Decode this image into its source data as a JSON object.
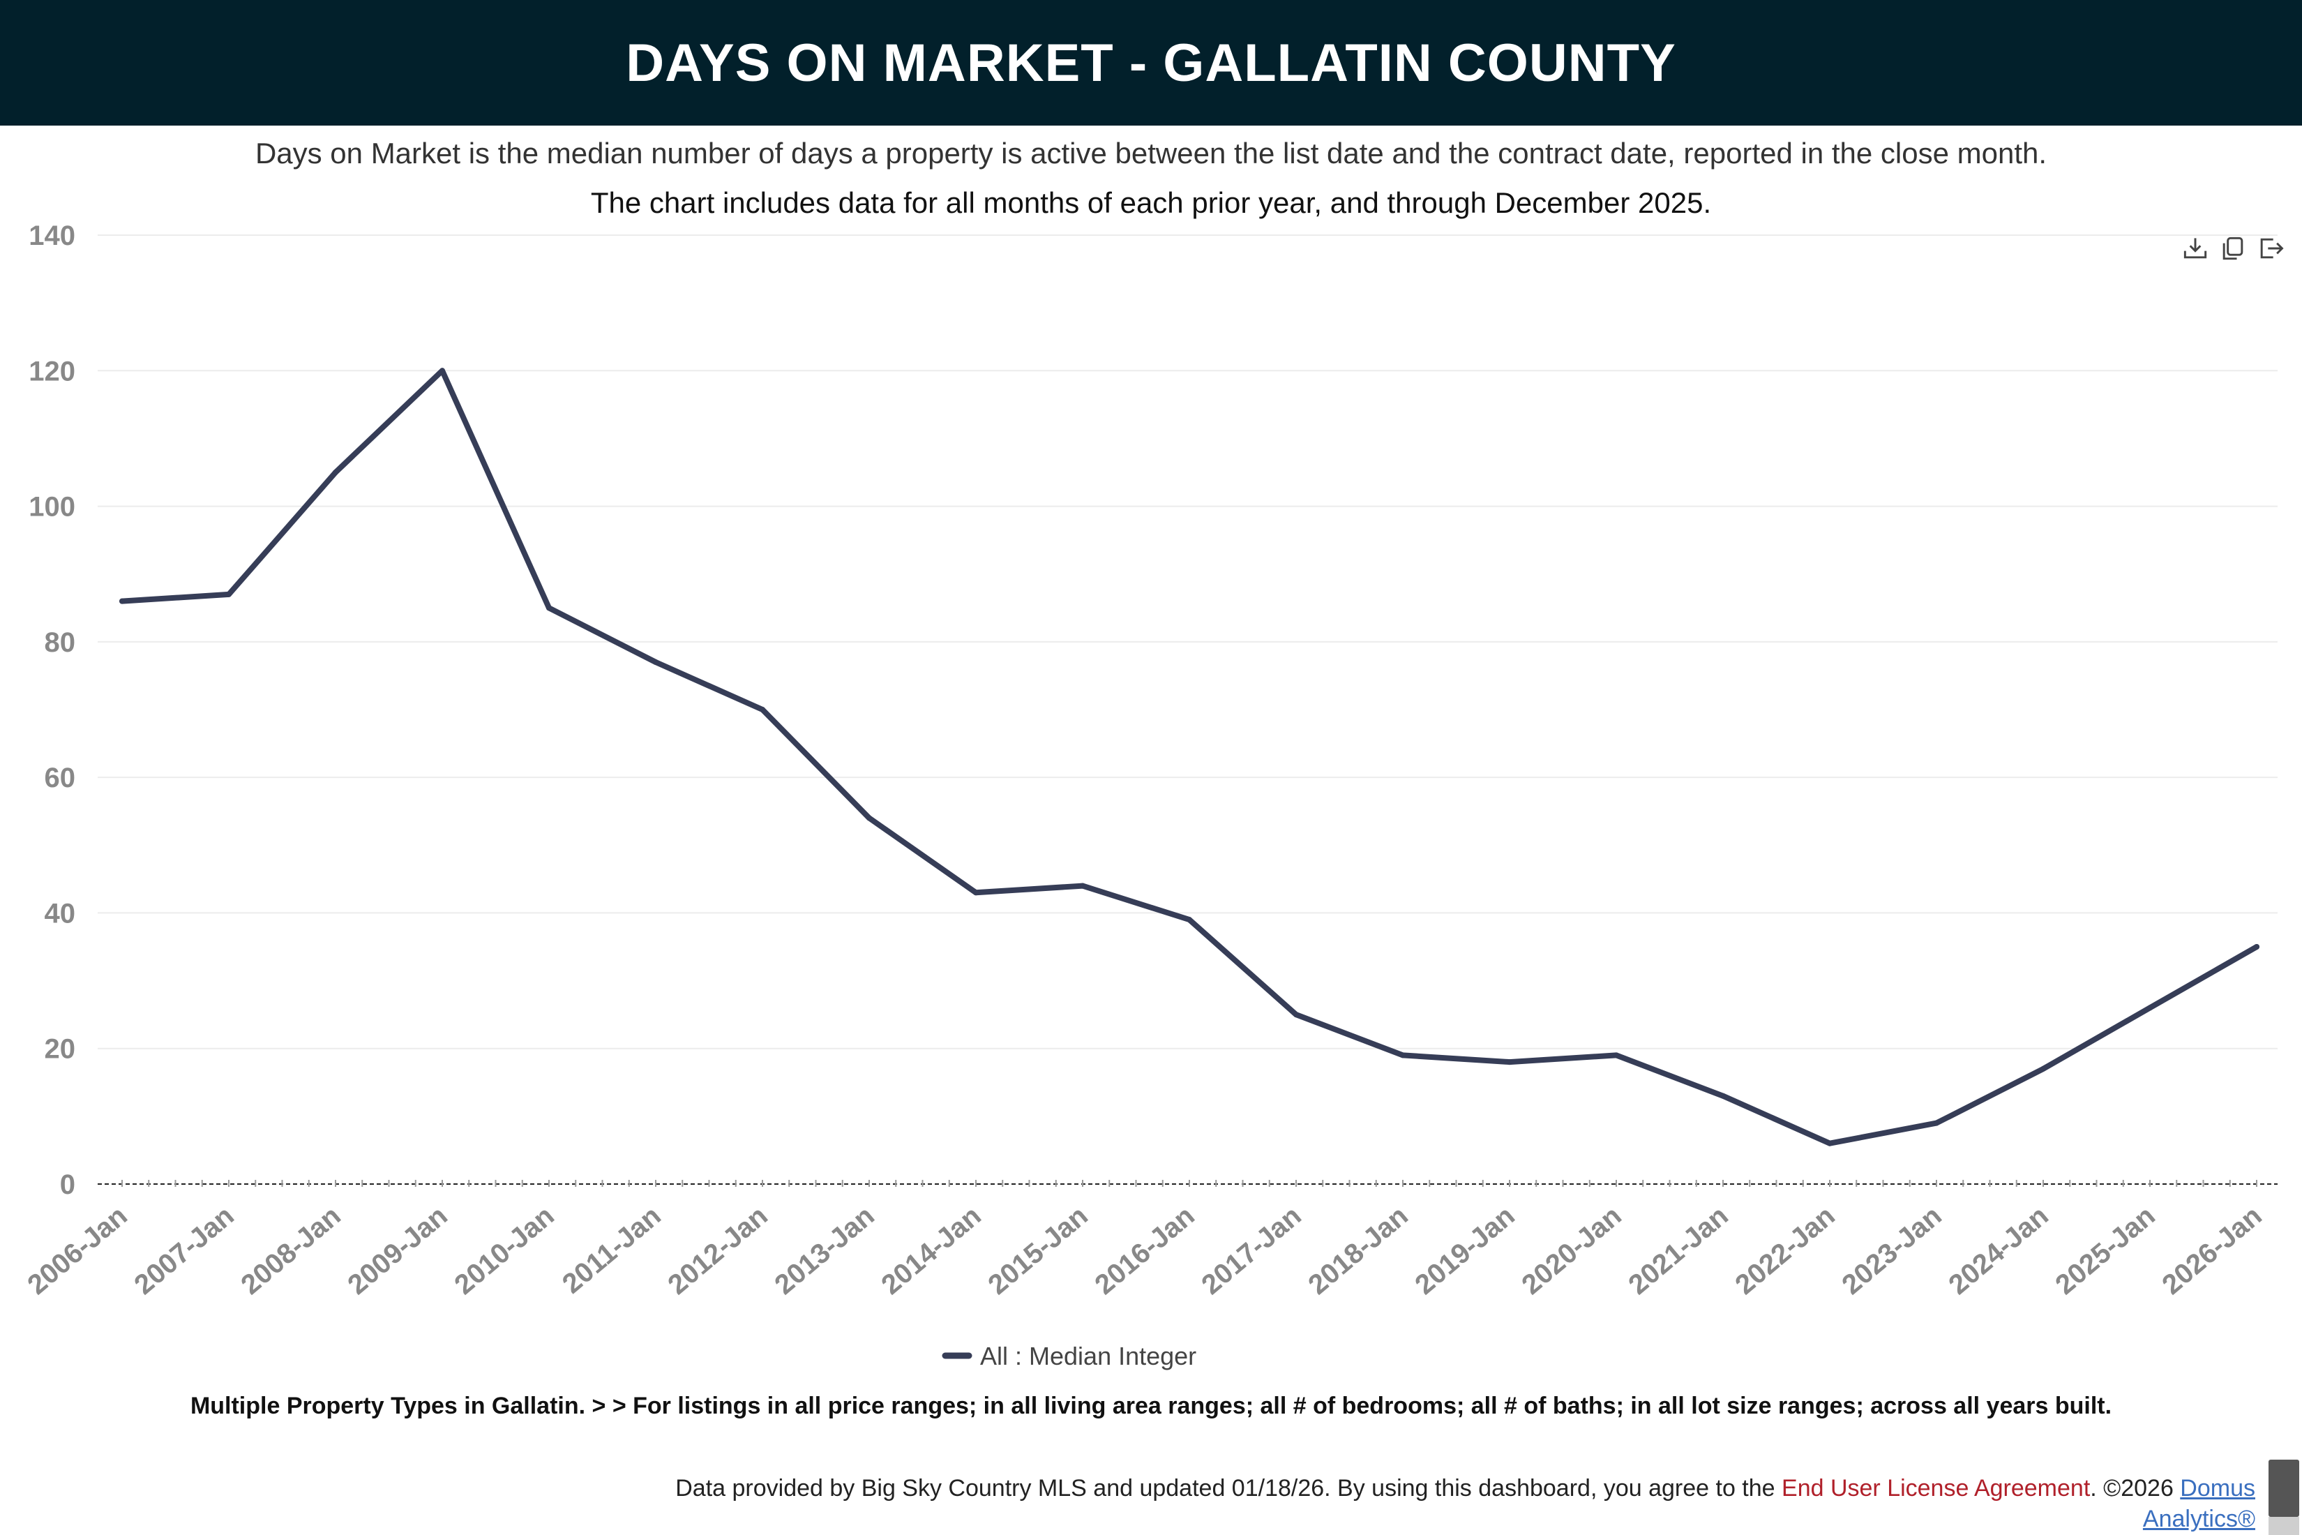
{
  "header": {
    "title": "DAYS ON MARKET - GALLATIN COUNTY"
  },
  "description": {
    "line1": "Days on Market is the median number of days a property is active between the list date and the contract date, reported in the close month.",
    "line2": "The chart includes data for all months of each prior year, and through December 2025."
  },
  "toolbar": {
    "icons": [
      "download-icon",
      "copy-icon",
      "export-icon"
    ]
  },
  "chart_data": {
    "type": "line",
    "title": "",
    "xlabel": "",
    "ylabel": "",
    "ylim": [
      0,
      140
    ],
    "yticks": [
      0,
      20,
      40,
      60,
      80,
      100,
      120,
      140
    ],
    "categories": [
      "2006-Jan",
      "2007-Jan",
      "2008-Jan",
      "2009-Jan",
      "2010-Jan",
      "2011-Jan",
      "2012-Jan",
      "2013-Jan",
      "2014-Jan",
      "2015-Jan",
      "2016-Jan",
      "2017-Jan",
      "2018-Jan",
      "2019-Jan",
      "2020-Jan",
      "2021-Jan",
      "2022-Jan",
      "2023-Jan",
      "2024-Jan",
      "2025-Jan",
      "2026-Jan"
    ],
    "series": [
      {
        "name": "All : Median Integer",
        "color": "#363d57",
        "values": [
          86,
          87,
          105,
          120,
          85,
          77,
          70,
          54,
          43,
          44,
          39,
          25,
          19,
          18,
          19,
          13,
          6,
          9,
          17,
          26,
          35
        ]
      }
    ],
    "grid": true,
    "legend": "bottom-center"
  },
  "filter_text": "Multiple Property Types in Gallatin. > > For listings in all price ranges; in all living area ranges; all # of bedrooms; all # of baths; in all lot size ranges; across all years built.",
  "footer": {
    "text_before": "Data provided by Big Sky Country MLS and updated 01/18/26.  By using this dashboard, you agree to the ",
    "eula_link": "End User License Agreement",
    "text_after": ".  ©2026 ",
    "domus_link_1": "Domus",
    "domus_link_2": "Analytics®"
  }
}
